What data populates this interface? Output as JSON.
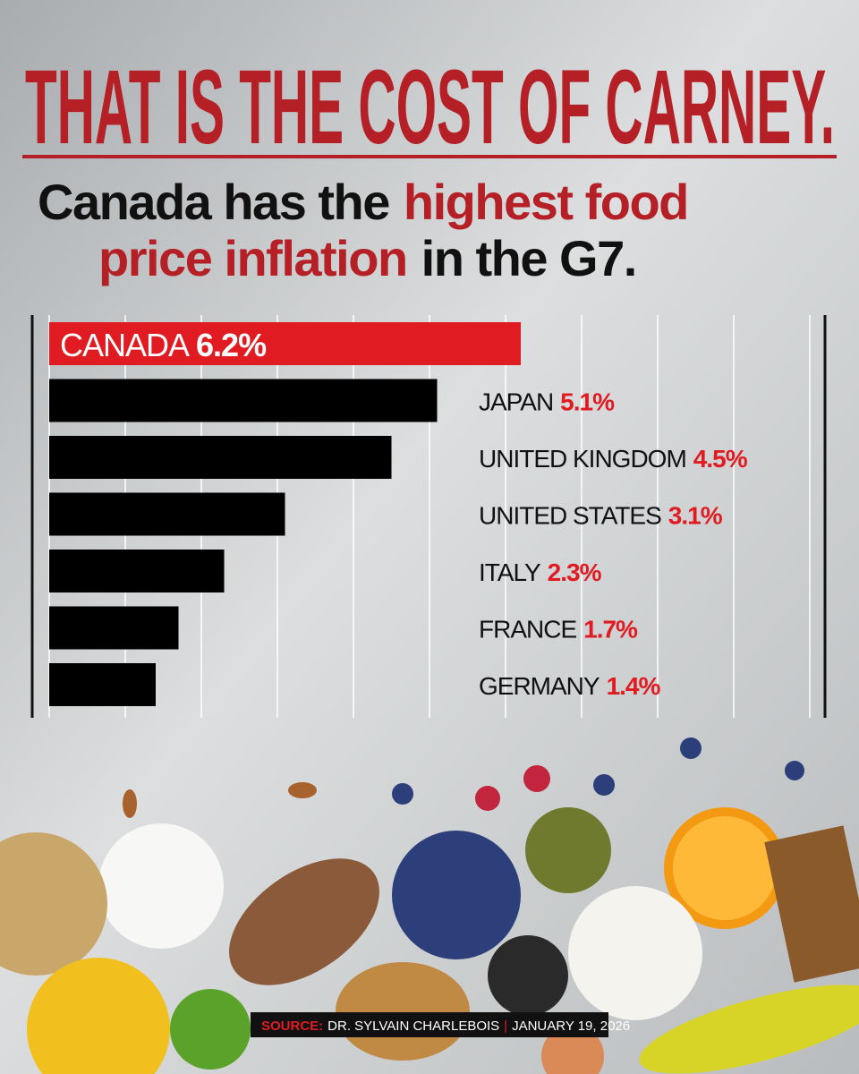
{
  "chart_data": {
    "type": "bar",
    "orientation": "horizontal",
    "title": "THAT IS THE COST OF CARNEY.",
    "subtitle": [
      "Canada has the",
      "highest food",
      "price inflation",
      "in the G7."
    ],
    "categories": [
      "CANADA",
      "JAPAN",
      "UNITED KINGDOM",
      "UNITED STATES",
      "ITALY",
      "FRANCE",
      "GERMANY"
    ],
    "values": [
      6.2,
      5.1,
      4.5,
      3.1,
      2.3,
      1.7,
      1.4
    ],
    "value_labels": [
      "6.2%",
      "5.1%",
      "4.5%",
      "3.1%",
      "2.3%",
      "1.7%",
      "1.4%"
    ],
    "colors": [
      "#e11b22",
      "#000000",
      "#000000",
      "#000000",
      "#000000",
      "#000000",
      "#000000"
    ],
    "source": {
      "label": "SOURCE:",
      "author": "DR. SYLVAIN CHARLEBOIS",
      "date": "JANUARY 19, 2026"
    }
  }
}
